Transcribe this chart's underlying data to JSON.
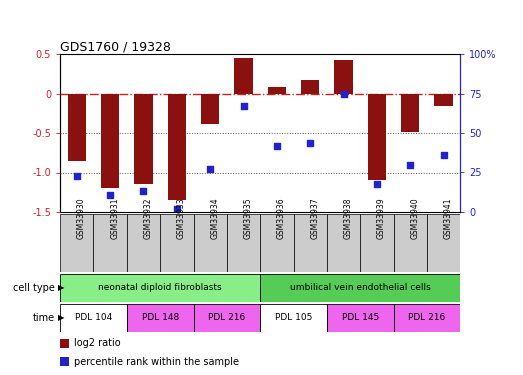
{
  "title": "GDS1760 / 19328",
  "samples": [
    "GSM33930",
    "GSM33931",
    "GSM33932",
    "GSM33933",
    "GSM33934",
    "GSM33935",
    "GSM33936",
    "GSM33937",
    "GSM33938",
    "GSM33939",
    "GSM33940",
    "GSM33941"
  ],
  "log2_ratio": [
    -0.85,
    -1.2,
    -1.15,
    -1.35,
    -0.38,
    0.46,
    0.09,
    0.17,
    0.43,
    -1.1,
    -0.48,
    -0.15
  ],
  "percentile_rank": [
    23,
    11,
    13,
    2,
    27,
    67,
    42,
    44,
    75,
    18,
    30,
    36
  ],
  "ylim_left": [
    -1.5,
    0.5
  ],
  "ylim_right": [
    0,
    100
  ],
  "bar_color": "#8B1010",
  "dot_color": "#2222CC",
  "zero_line_color": "#CC2222",
  "dotted_line_color": "#555555",
  "cell_type_row": [
    {
      "label": "neonatal diploid fibroblasts",
      "start": 0,
      "end": 6,
      "color": "#88EE88"
    },
    {
      "label": "umbilical vein endothelial cells",
      "start": 6,
      "end": 12,
      "color": "#55CC55"
    }
  ],
  "time_row": [
    {
      "label": "PDL 104",
      "start": 0,
      "end": 2,
      "color": "#FFFFFF"
    },
    {
      "label": "PDL 148",
      "start": 2,
      "end": 4,
      "color": "#EE66EE"
    },
    {
      "label": "PDL 216",
      "start": 4,
      "end": 6,
      "color": "#EE66EE"
    },
    {
      "label": "PDL 105",
      "start": 6,
      "end": 8,
      "color": "#FFFFFF"
    },
    {
      "label": "PDL 145",
      "start": 8,
      "end": 10,
      "color": "#EE66EE"
    },
    {
      "label": "PDL 216",
      "start": 10,
      "end": 12,
      "color": "#EE66EE"
    }
  ],
  "legend_labels": [
    "log2 ratio",
    "percentile rank within the sample"
  ],
  "legend_colors": [
    "#8B1010",
    "#2222CC"
  ],
  "left_tick_color": "#CC2222",
  "right_tick_color": "#2222CC",
  "sample_box_color": "#CCCCCC",
  "left_ticks": [
    -1.5,
    -1.0,
    -0.5,
    0,
    0.5
  ],
  "right_ticks": [
    0,
    25,
    50,
    75,
    100
  ]
}
